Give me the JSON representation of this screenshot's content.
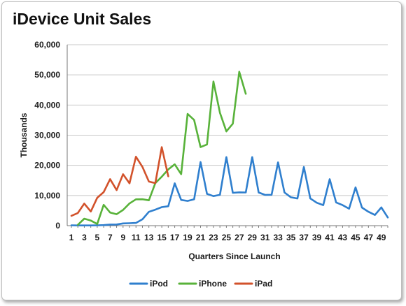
{
  "chart_data": {
    "type": "line",
    "title": "iDevice Unit Sales",
    "xlabel": "Quarters Since Launch",
    "ylabel": "Thousands",
    "ylim": [
      0,
      60000
    ],
    "xlim": [
      1,
      50
    ],
    "y_ticks": [
      0,
      10000,
      20000,
      30000,
      40000,
      50000,
      60000
    ],
    "y_tick_labels": [
      "0",
      "10,000",
      "20,000",
      "30,000",
      "40,000",
      "50,000",
      "60,000"
    ],
    "x_tick_labels": [
      "1",
      "3",
      "5",
      "7",
      "9",
      "11",
      "13",
      "15",
      "17",
      "19",
      "21",
      "23",
      "25",
      "27",
      "29",
      "31",
      "33",
      "35",
      "37",
      "39",
      "41",
      "43",
      "45",
      "47",
      "49"
    ],
    "grid": "horizontal",
    "legend": "bottom",
    "series": [
      {
        "name": "iPod",
        "color": "#2f7fce",
        "x": [
          1,
          2,
          3,
          4,
          5,
          6,
          7,
          8,
          9,
          10,
          11,
          12,
          13,
          14,
          15,
          16,
          17,
          18,
          19,
          20,
          21,
          22,
          23,
          24,
          25,
          26,
          27,
          28,
          29,
          30,
          31,
          32,
          33,
          34,
          35,
          36,
          37,
          38,
          39,
          40,
          41,
          42,
          43,
          44,
          45,
          46,
          47,
          48,
          49,
          50
        ],
        "values": [
          125,
          78,
          80,
          80,
          120,
          190,
          380,
          400,
          730,
          810,
          900,
          2100,
          4580,
          5310,
          6150,
          6450,
          14040,
          8530,
          8210,
          8730,
          21070,
          10550,
          9800,
          10210,
          22730,
          10890,
          11050,
          11000,
          22720,
          11010,
          10200,
          10250,
          21000,
          11010,
          9400,
          9020,
          19450,
          9020,
          7600,
          6800,
          15400,
          7700,
          6800,
          5600,
          12700,
          6000,
          4600,
          3550,
          6050,
          2700
        ]
      },
      {
        "name": "iPhone",
        "color": "#58b23a",
        "x": [
          2,
          3,
          4,
          5,
          6,
          7,
          8,
          9,
          10,
          11,
          12,
          13,
          14,
          15,
          16,
          17,
          18,
          19,
          20,
          21,
          22,
          23,
          24,
          25,
          26,
          27,
          28
        ],
        "values": [
          270,
          2320,
          1700,
          550,
          6900,
          4360,
          3790,
          5210,
          7370,
          8740,
          8750,
          8400,
          14100,
          16240,
          18650,
          20340,
          17070,
          37040,
          35060,
          26030,
          26910,
          47790,
          37430,
          31240,
          33800,
          51030,
          43720
        ]
      },
      {
        "name": "iPad",
        "color": "#d2522b",
        "x": [
          1,
          2,
          3,
          4,
          5,
          6,
          7,
          8,
          9,
          10,
          11,
          12,
          13,
          14,
          15,
          16
        ],
        "values": [
          3270,
          4190,
          7330,
          4690,
          9250,
          11120,
          15430,
          11800,
          17040,
          14040,
          22860,
          19480,
          14620,
          14100,
          26040,
          16350
        ]
      }
    ]
  }
}
